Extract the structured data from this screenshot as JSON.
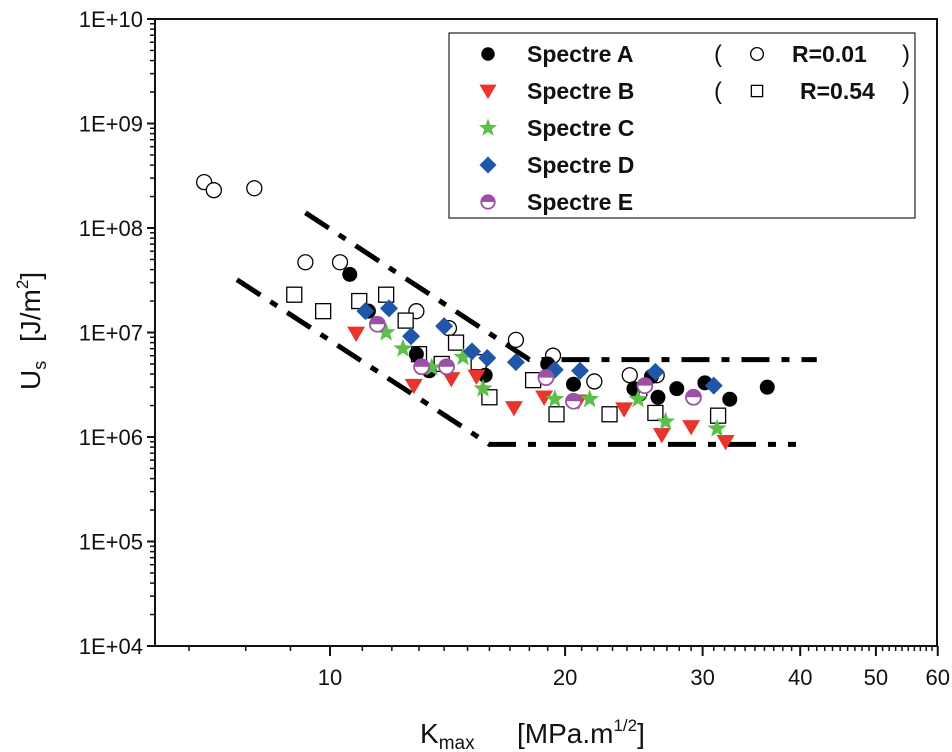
{
  "chart_data": {
    "type": "scatter",
    "title": "",
    "xlabel": {
      "main": "K",
      "sub": "max",
      "unit": "[MPa.m",
      "unit_sup": "1/2",
      "unit_close": "]"
    },
    "ylabel": {
      "main": "U",
      "sub": "s",
      "unit": "[J/m",
      "unit_sup": "2",
      "unit_close": "]"
    },
    "xscale": "log",
    "yscale": "log",
    "xlim": [
      5.9,
      60
    ],
    "ylim": [
      10000,
      10000000000
    ],
    "x_major_ticks": [
      10,
      20,
      30,
      40,
      50,
      60
    ],
    "x_tick_labels": [
      "10",
      "20",
      "30",
      "40",
      "50",
      "60"
    ],
    "y_major_ticks": [
      10000,
      100000,
      1000000,
      10000000,
      100000000,
      1000000000,
      10000000000
    ],
    "y_tick_labels": [
      "1E+04",
      "1E+05",
      "1E+06",
      "1E+07",
      "1E+08",
      "1E+09",
      "1E+10"
    ],
    "grid": false,
    "legend": {
      "placement": "top-right",
      "entries": [
        {
          "label": "Spectre A",
          "marker": "filled-circle",
          "color": "#000000"
        },
        {
          "label": "Spectre B",
          "marker": "down-triangle",
          "color": "#e8342a"
        },
        {
          "label": "Spectre C",
          "marker": "star",
          "color": "#5cbf4a"
        },
        {
          "label": "Spectre D",
          "marker": "diamond",
          "color": "#1f56a8"
        },
        {
          "label": "Spectre E",
          "marker": "half-circle",
          "color": "#9b4fa6"
        }
      ],
      "ratio_entries": [
        {
          "label": "R=0.01",
          "marker": "open-circle",
          "open_paren": "(",
          "close_paren": ")"
        },
        {
          "label": "R=0.54",
          "marker": "open-square",
          "open_paren": "(",
          "close_paren": ")"
        }
      ]
    },
    "series": [
      {
        "name": "R=0.01",
        "marker": "open-circle",
        "color": "#000000",
        "points": [
          [
            6.9,
            275000000.0
          ],
          [
            7.1,
            230000000.0
          ],
          [
            8.0,
            240000000.0
          ],
          [
            9.3,
            47000000.0
          ],
          [
            10.3,
            47000000.0
          ],
          [
            12.9,
            16000000.0
          ],
          [
            14.2,
            11000000.0
          ],
          [
            17.3,
            8500000.0
          ],
          [
            19.3,
            6000000.0
          ],
          [
            21.8,
            3400000.0
          ],
          [
            24.2,
            3900000.0
          ],
          [
            26.2,
            3900000.0
          ],
          [
            24.9,
            2600000.0
          ]
        ]
      },
      {
        "name": "R=0.54",
        "marker": "open-square",
        "color": "#000000",
        "points": [
          [
            9.0,
            23000000.0
          ],
          [
            9.8,
            16000000.0
          ],
          [
            10.9,
            20000000.0
          ],
          [
            11.8,
            23000000.0
          ],
          [
            12.5,
            13000000.0
          ],
          [
            13.0,
            6200000.0
          ],
          [
            13.9,
            5000000.0
          ],
          [
            14.5,
            8000000.0
          ],
          [
            15.5,
            5200000.0
          ],
          [
            16.0,
            2400000.0
          ],
          [
            18.2,
            3500000.0
          ],
          [
            19.5,
            1650000.0
          ],
          [
            22.8,
            1650000.0
          ],
          [
            26.1,
            1700000.0
          ],
          [
            31.4,
            1600000.0
          ]
        ]
      },
      {
        "name": "Spectre A",
        "marker": "filled-circle",
        "color": "#000000",
        "points": [
          [
            10.6,
            36000000.0
          ],
          [
            11.2,
            16000000.0
          ],
          [
            12.9,
            6200000.0
          ],
          [
            13.4,
            4300000.0
          ],
          [
            15.8,
            3900000.0
          ],
          [
            20.5,
            3200000.0
          ],
          [
            24.5,
            2900000.0
          ],
          [
            26.3,
            2400000.0
          ],
          [
            27.8,
            2900000.0
          ],
          [
            30.2,
            3300000.0
          ],
          [
            32.5,
            2300000.0
          ],
          [
            36.3,
            3000000.0
          ],
          [
            19.0,
            5000000.0
          ],
          [
            25.8,
            3800000.0
          ]
        ]
      },
      {
        "name": "Spectre B",
        "marker": "down-triangle",
        "color": "#e8342a",
        "points": [
          [
            10.8,
            9800000.0
          ],
          [
            12.8,
            3100000.0
          ],
          [
            14.3,
            3600000.0
          ],
          [
            15.4,
            3800000.0
          ],
          [
            17.2,
            1900000.0
          ],
          [
            18.8,
            2400000.0
          ],
          [
            20.8,
            2200000.0
          ],
          [
            23.8,
            1850000.0
          ],
          [
            26.6,
            1050000.0
          ],
          [
            29.0,
            1250000.0
          ],
          [
            32.1,
            900000.0
          ]
        ]
      },
      {
        "name": "Spectre C",
        "marker": "star",
        "color": "#5cbf4a",
        "points": [
          [
            11.8,
            10000000.0
          ],
          [
            12.4,
            7000000.0
          ],
          [
            13.5,
            4600000.0
          ],
          [
            14.8,
            5800000.0
          ],
          [
            15.7,
            2900000.0
          ],
          [
            19.4,
            2300000.0
          ],
          [
            21.5,
            2300000.0
          ],
          [
            24.8,
            2300000.0
          ],
          [
            26.9,
            1400000.0
          ],
          [
            31.3,
            1200000.0
          ]
        ]
      },
      {
        "name": "Spectre D",
        "marker": "diamond",
        "color": "#1f56a8",
        "points": [
          [
            11.1,
            16000000.0
          ],
          [
            11.9,
            17000000.0
          ],
          [
            12.7,
            9200000.0
          ],
          [
            14.0,
            11500000.0
          ],
          [
            15.2,
            6600000.0
          ],
          [
            15.9,
            5700000.0
          ],
          [
            17.3,
            5200000.0
          ],
          [
            20.9,
            4300000.0
          ],
          [
            26.1,
            4200000.0
          ],
          [
            31.0,
            3100000.0
          ],
          [
            19.4,
            4400000.0
          ]
        ]
      },
      {
        "name": "Spectre E",
        "marker": "half-circle",
        "color": "#9b4fa6",
        "points": [
          [
            11.5,
            12000000.0
          ],
          [
            13.1,
            4700000.0
          ],
          [
            14.1,
            4700000.0
          ],
          [
            18.9,
            3700000.0
          ],
          [
            20.5,
            2200000.0
          ],
          [
            25.3,
            3100000.0
          ],
          [
            29.2,
            2400000.0
          ]
        ]
      }
    ],
    "guide_lines": [
      {
        "name": "upper-bound",
        "style": "dash-dot",
        "points": [
          [
            9.3,
            140000000.0
          ],
          [
            18.0,
            5500000.0
          ],
          [
            42,
            5500000.0
          ]
        ]
      },
      {
        "name": "lower-bound",
        "style": "dash-dot",
        "points": [
          [
            7.6,
            32000000.0
          ],
          [
            16.0,
            850000.0
          ],
          [
            39.5,
            850000.0
          ]
        ]
      }
    ]
  }
}
